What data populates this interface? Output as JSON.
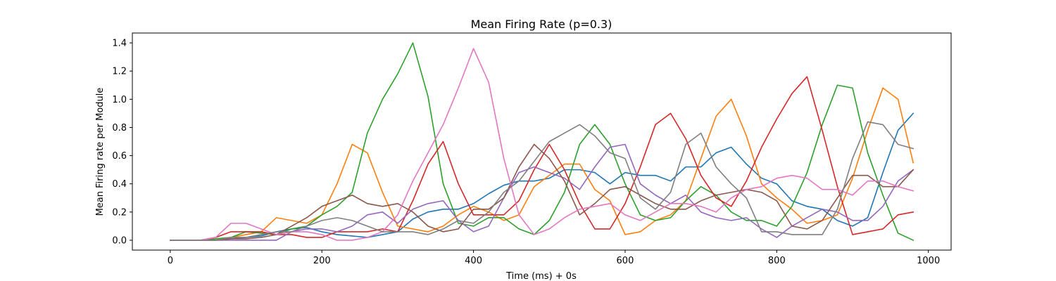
{
  "chart_data": {
    "type": "line",
    "title": "Mean Firing Rate (p=0.3)",
    "xlabel": "Time (ms) + 0s",
    "ylabel": "Mean Firing rate per Module",
    "xlim": [
      -50,
      1030
    ],
    "ylim": [
      -0.07,
      1.47
    ],
    "xticks": [
      0,
      200,
      400,
      600,
      800,
      1000
    ],
    "xtick_labels": [
      "0",
      "200",
      "400",
      "600",
      "800",
      "1000"
    ],
    "yticks": [
      0.0,
      0.2,
      0.4,
      0.6,
      0.8,
      1.0,
      1.2,
      1.4
    ],
    "ytick_labels": [
      "0.0",
      "0.2",
      "0.4",
      "0.6",
      "0.8",
      "1.0",
      "1.2",
      "1.4"
    ],
    "grid": false,
    "x": [
      0,
      20,
      40,
      60,
      80,
      100,
      120,
      140,
      160,
      180,
      200,
      220,
      240,
      260,
      280,
      300,
      320,
      340,
      360,
      380,
      400,
      420,
      440,
      460,
      480,
      500,
      520,
      540,
      560,
      580,
      600,
      620,
      640,
      660,
      680,
      700,
      720,
      740,
      760,
      780,
      800,
      820,
      840,
      860,
      880,
      900,
      920,
      940,
      960,
      980
    ],
    "series": [
      {
        "color": "#1f77b4",
        "values": [
          0,
          0,
          0,
          0,
          0.01,
          0.02,
          0.03,
          0.06,
          0.08,
          0.09,
          0.06,
          0.04,
          0.03,
          0.02,
          0.04,
          0.06,
          0.15,
          0.2,
          0.22,
          0.22,
          0.26,
          0.33,
          0.39,
          0.42,
          0.42,
          0.44,
          0.5,
          0.5,
          0.48,
          0.4,
          0.48,
          0.46,
          0.46,
          0.42,
          0.52,
          0.52,
          0.62,
          0.66,
          0.54,
          0.44,
          0.4,
          0.28,
          0.24,
          0.22,
          0.14,
          0.1,
          0.16,
          0.48,
          0.78,
          0.9
        ]
      },
      {
        "color": "#ff7f0e",
        "values": [
          0,
          0,
          0,
          0,
          0.02,
          0.04,
          0.06,
          0.16,
          0.14,
          0.12,
          0.18,
          0.4,
          0.68,
          0.62,
          0.34,
          0.1,
          0.08,
          0.06,
          0.1,
          0.18,
          0.24,
          0.2,
          0.14,
          0.18,
          0.38,
          0.46,
          0.54,
          0.54,
          0.36,
          0.28,
          0.04,
          0.06,
          0.14,
          0.18,
          0.28,
          0.58,
          0.88,
          1.0,
          0.74,
          0.4,
          0.3,
          0.22,
          0.12,
          0.14,
          0.18,
          0.44,
          0.78,
          1.08,
          1.0,
          0.55
        ]
      },
      {
        "color": "#2ca02c",
        "values": [
          0,
          0,
          0,
          0.01,
          0.02,
          0.06,
          0.05,
          0.04,
          0.08,
          0.1,
          0.18,
          0.24,
          0.34,
          0.76,
          1.0,
          1.18,
          1.4,
          1.02,
          0.4,
          0.12,
          0.1,
          0.16,
          0.16,
          0.08,
          0.04,
          0.14,
          0.34,
          0.68,
          0.82,
          0.68,
          0.4,
          0.18,
          0.14,
          0.16,
          0.28,
          0.38,
          0.32,
          0.2,
          0.14,
          0.14,
          0.1,
          0.24,
          0.48,
          0.82,
          1.1,
          1.08,
          0.62,
          0.32,
          0.05,
          0
        ]
      },
      {
        "color": "#d62728",
        "values": [
          0,
          0,
          0,
          0.02,
          0.06,
          0.06,
          0.06,
          0.04,
          0.04,
          0.02,
          0.02,
          0.06,
          0.06,
          0.06,
          0.08,
          0.06,
          0.28,
          0.54,
          0.7,
          0.4,
          0.18,
          0.18,
          0.18,
          0.28,
          0.5,
          0.68,
          0.5,
          0.26,
          0.08,
          0.08,
          0.26,
          0.52,
          0.82,
          0.9,
          0.72,
          0.46,
          0.3,
          0.24,
          0.42,
          0.66,
          0.86,
          1.04,
          1.16,
          0.78,
          0.38,
          0.04,
          0.06,
          0.08,
          0.18,
          0.2
        ]
      },
      {
        "color": "#9467bd",
        "values": [
          0,
          0,
          0,
          0,
          0,
          0,
          0,
          0,
          0.06,
          0.08,
          0.08,
          0.06,
          0.1,
          0.18,
          0.2,
          0.12,
          0.22,
          0.26,
          0.28,
          0.14,
          0.06,
          0.1,
          0.3,
          0.48,
          0.52,
          0.48,
          0.44,
          0.36,
          0.52,
          0.66,
          0.68,
          0.4,
          0.32,
          0.26,
          0.32,
          0.2,
          0.16,
          0.14,
          0.16,
          0.08,
          0.02,
          0.1,
          0.16,
          0.22,
          0.2,
          0.14,
          0.14,
          0.24,
          0.42,
          0.5
        ]
      },
      {
        "color": "#8c564b",
        "values": [
          0,
          0,
          0,
          0,
          0.01,
          0.01,
          0.02,
          0.04,
          0.1,
          0.16,
          0.24,
          0.28,
          0.32,
          0.26,
          0.24,
          0.26,
          0.2,
          0.1,
          0.06,
          0.08,
          0.22,
          0.22,
          0.3,
          0.52,
          0.68,
          0.58,
          0.42,
          0.18,
          0.26,
          0.36,
          0.38,
          0.32,
          0.26,
          0.22,
          0.22,
          0.28,
          0.32,
          0.34,
          0.36,
          0.34,
          0.28,
          0.1,
          0.08,
          0.14,
          0.3,
          0.46,
          0.46,
          0.38,
          0.38,
          0.5
        ]
      },
      {
        "color": "#e377c2",
        "values": [
          0,
          0,
          0,
          0.02,
          0.12,
          0.12,
          0.08,
          0.04,
          0.06,
          0.06,
          0.04,
          0,
          0,
          0.02,
          0.06,
          0.18,
          0.42,
          0.62,
          0.82,
          1.08,
          1.36,
          1.12,
          0.58,
          0.18,
          0.04,
          0.08,
          0.16,
          0.22,
          0.24,
          0.26,
          0.18,
          0.14,
          0.2,
          0.26,
          0.26,
          0.24,
          0.2,
          0.3,
          0.36,
          0.38,
          0.44,
          0.46,
          0.44,
          0.36,
          0.36,
          0.32,
          0.42,
          0.42,
          0.38,
          0.35
        ]
      },
      {
        "color": "#7f7f7f",
        "values": [
          0,
          0,
          0,
          0,
          0.02,
          0.02,
          0.04,
          0.06,
          0.06,
          0.1,
          0.14,
          0.16,
          0.14,
          0.1,
          0.06,
          0.06,
          0.06,
          0.04,
          0.08,
          0.14,
          0.12,
          0.2,
          0.34,
          0.42,
          0.56,
          0.7,
          0.76,
          0.82,
          0.74,
          0.62,
          0.58,
          0.3,
          0.22,
          0.34,
          0.68,
          0.76,
          0.52,
          0.4,
          0.3,
          0.06,
          0.06,
          0.04,
          0.04,
          0.04,
          0.22,
          0.58,
          0.84,
          0.82,
          0.68,
          0.65
        ]
      }
    ]
  }
}
